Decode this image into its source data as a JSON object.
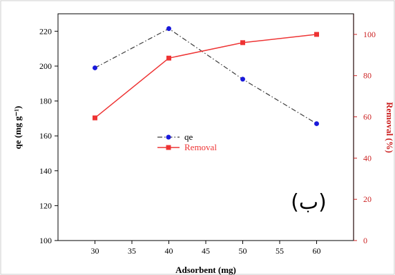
{
  "chart_data": {
    "type": "line",
    "x": [
      30,
      40,
      50,
      60
    ],
    "series": [
      {
        "name": "qe",
        "axis": "left",
        "values": [
          199,
          221.5,
          192.5,
          167
        ],
        "color": "#1a1adb",
        "marker": "circle",
        "line": "dash-dot",
        "line_color": "#3a3a3a"
      },
      {
        "name": "Removal",
        "axis": "right",
        "values": [
          59.5,
          88.5,
          96,
          100
        ],
        "color": "#ee3333",
        "marker": "square",
        "line": "solid",
        "line_color": "#ee3333"
      }
    ],
    "xlabel": "Adsorbent (mg)",
    "ylabel_left": "qe (mg g⁻¹)",
    "ylabel_right": "Removal (%)",
    "xlim": [
      25,
      65
    ],
    "ylim_left": [
      100,
      230
    ],
    "ylim_right": [
      0,
      110
    ],
    "xticks": [
      30,
      35,
      40,
      45,
      50,
      55,
      60
    ],
    "yticks_left": [
      100,
      120,
      140,
      160,
      180,
      200,
      220
    ],
    "yticks_right": [
      0,
      20,
      40,
      60,
      80,
      100
    ],
    "right_axis_color": "#cc2222",
    "legend_position": "center-left",
    "grid": false,
    "annotation": "(ب)"
  }
}
